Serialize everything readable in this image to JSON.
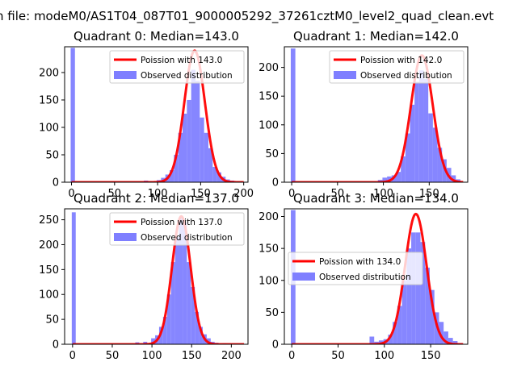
{
  "suptitle": "n file: modeM0/AS1T04_087T01_9000005292_37261cztM0_level2_quad_clean.evt",
  "legend_labels": {
    "fit_prefix": "Poission with",
    "observed": "Observed distribution"
  },
  "colors": {
    "fit": "#ff0000",
    "hist": "#7f7fff"
  },
  "chart_data": [
    {
      "type": "bar",
      "title": "Quadrant 0: Median=143.0",
      "legend_fit": "Poission with 143.0",
      "legend_observed": "Observed distribution",
      "legend_position": "upper right",
      "xlim": [
        -8,
        205
      ],
      "ylim": [
        0,
        247
      ],
      "xticks": [
        0,
        50,
        100,
        150,
        200
      ],
      "yticks": [
        0,
        50,
        100,
        150,
        200
      ],
      "bin_width": 5,
      "bins": [
        [
          -1,
          245
        ],
        [
          84,
          3
        ],
        [
          89,
          2
        ],
        [
          99,
          4
        ],
        [
          104,
          8
        ],
        [
          109,
          14
        ],
        [
          114,
          22
        ],
        [
          119,
          50
        ],
        [
          124,
          90
        ],
        [
          129,
          125
        ],
        [
          134,
          150
        ],
        [
          139,
          205
        ],
        [
          144,
          185
        ],
        [
          149,
          118
        ],
        [
          154,
          90
        ],
        [
          159,
          62
        ],
        [
          164,
          28
        ],
        [
          169,
          18
        ],
        [
          174,
          10
        ],
        [
          179,
          5
        ],
        [
          184,
          3
        ],
        [
          189,
          1
        ]
      ],
      "fit": {
        "mu": 143,
        "peak": 240
      }
    },
    {
      "type": "bar",
      "title": "Quadrant 1: Median=142.0",
      "legend_fit": "Poission with 142.0",
      "legend_observed": "Observed distribution",
      "legend_position": "upper right",
      "xlim": [
        -8,
        192
      ],
      "ylim": [
        0,
        236
      ],
      "xticks": [
        0,
        50,
        100,
        150
      ],
      "yticks": [
        0,
        50,
        100,
        150,
        200
      ],
      "bin_width": 5,
      "bins": [
        [
          -1,
          233
        ],
        [
          94,
          4
        ],
        [
          99,
          8
        ],
        [
          104,
          10
        ],
        [
          109,
          12
        ],
        [
          114,
          18
        ],
        [
          119,
          45
        ],
        [
          124,
          85
        ],
        [
          129,
          135
        ],
        [
          134,
          175
        ],
        [
          139,
          195
        ],
        [
          144,
          180
        ],
        [
          149,
          120
        ],
        [
          154,
          95
        ],
        [
          159,
          60
        ],
        [
          164,
          40
        ],
        [
          169,
          25
        ],
        [
          174,
          12
        ],
        [
          179,
          5
        ]
      ],
      "fit": {
        "mu": 142,
        "peak": 221
      }
    },
    {
      "type": "bar",
      "title": "Quadrant 2: Median=137.0",
      "legend_fit": "Poission with 137.0",
      "legend_observed": "Observed distribution",
      "legend_position": "upper right",
      "xlim": [
        -10,
        221
      ],
      "ylim": [
        0,
        272
      ],
      "xticks": [
        0,
        50,
        100,
        150,
        200
      ],
      "yticks": [
        0,
        50,
        100,
        150,
        200,
        250
      ],
      "bin_width": 5,
      "bins": [
        [
          -1,
          265
        ],
        [
          79,
          4
        ],
        [
          89,
          5
        ],
        [
          99,
          12
        ],
        [
          104,
          18
        ],
        [
          109,
          35
        ],
        [
          114,
          55
        ],
        [
          119,
          100
        ],
        [
          124,
          165
        ],
        [
          129,
          215
        ],
        [
          134,
          255
        ],
        [
          139,
          245
        ],
        [
          144,
          165
        ],
        [
          149,
          115
        ],
        [
          154,
          65
        ],
        [
          159,
          35
        ],
        [
          164,
          20
        ],
        [
          169,
          12
        ],
        [
          174,
          5
        ],
        [
          179,
          3
        ],
        [
          189,
          2
        ],
        [
          199,
          1
        ]
      ],
      "fit": {
        "mu": 137,
        "peak": 257
      }
    },
    {
      "type": "bar",
      "title": "Quadrant 3: Median=134.0",
      "legend_fit": "Poission with 134.0",
      "legend_observed": "Observed distribution",
      "legend_position": "center left",
      "xlim": [
        -8,
        190
      ],
      "ylim": [
        0,
        212
      ],
      "xticks": [
        0,
        50,
        100,
        150
      ],
      "yticks": [
        0,
        50,
        100,
        150,
        200
      ],
      "bin_width": 5,
      "bins": [
        [
          -1,
          210
        ],
        [
          84,
          12
        ],
        [
          89,
          4
        ],
        [
          94,
          6
        ],
        [
          99,
          8
        ],
        [
          104,
          15
        ],
        [
          109,
          35
        ],
        [
          114,
          60
        ],
        [
          119,
          100
        ],
        [
          124,
          150
        ],
        [
          129,
          175
        ],
        [
          134,
          175
        ],
        [
          139,
          160
        ],
        [
          144,
          120
        ],
        [
          149,
          85
        ],
        [
          154,
          50
        ],
        [
          159,
          35
        ],
        [
          164,
          20
        ],
        [
          169,
          10
        ],
        [
          174,
          5
        ],
        [
          179,
          2
        ]
      ],
      "fit": {
        "mu": 134,
        "peak": 204
      }
    }
  ]
}
